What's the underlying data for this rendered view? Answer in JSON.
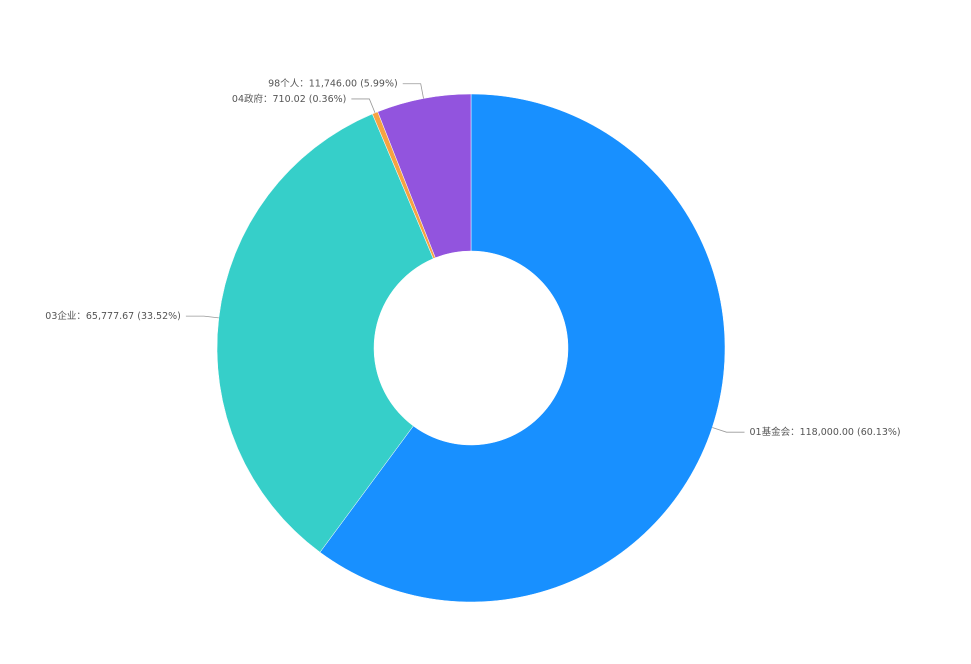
{
  "chart_data": {
    "type": "donut",
    "categories": [
      "01基金会：",
      "03企业：",
      "04政府：",
      "98个人："
    ],
    "series": [
      {
        "values": [
          118000,
          65777.67,
          710.02,
          11746
        ],
        "value_labels": [
          "118,000.00 (60.13%)",
          "65,777.67 (33.52%)",
          "710.02 (0.36%)",
          "11,746.00 (5.99%)"
        ],
        "colors": [
          "#1890ff",
          "#36cfc9",
          "#f6a342",
          "#9254de"
        ]
      }
    ]
  }
}
